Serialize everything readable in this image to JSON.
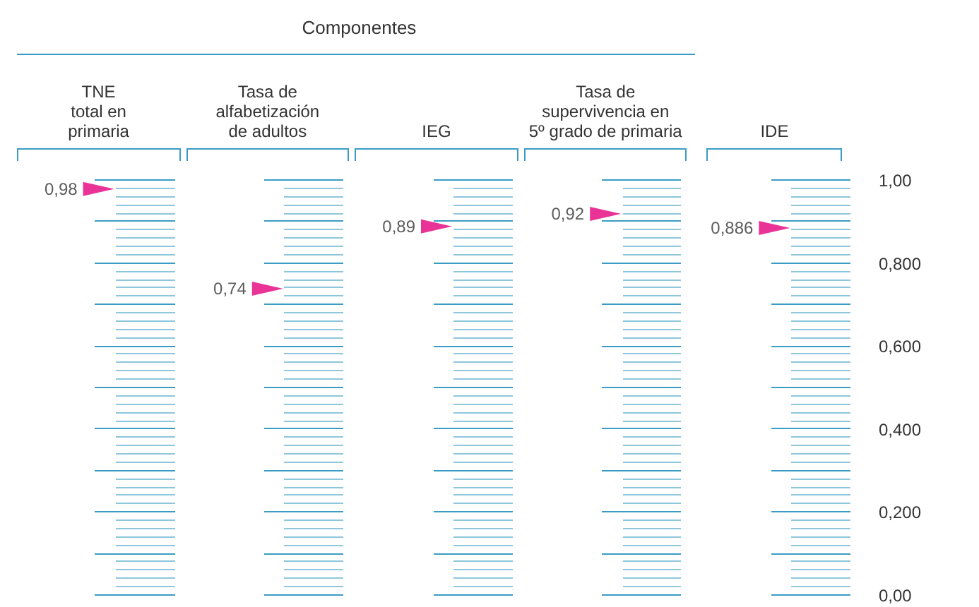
{
  "chart_data": {
    "type": "scatter",
    "annotations": [
      "Componentes"
    ],
    "categories": [
      "TNE\ntotal en\nprimaria",
      "Tasa de\nalfabetización\nde adultos",
      "IEG",
      "Tasa de\nsupervivencia en\n5º grado de primaria",
      "IDE"
    ],
    "values": [
      0.98,
      0.74,
      0.89,
      0.92,
      0.886
    ],
    "value_labels": [
      "0,98",
      "0,74",
      "0,89",
      "0,92",
      "0,886"
    ],
    "color": "#e5007d",
    "marker": "triangle",
    "grid": false,
    "ylim": [
      0,
      1
    ],
    "yticks": [
      {
        "value": 0,
        "label": "0,00"
      },
      {
        "value": 0.2,
        "label": "0,200"
      },
      {
        "value": 0.4,
        "label": "0,400"
      },
      {
        "value": 0.6,
        "label": "0,600"
      },
      {
        "value": 0.8,
        "label": "0,800"
      },
      {
        "value": 1,
        "label": "1,00"
      }
    ]
  }
}
